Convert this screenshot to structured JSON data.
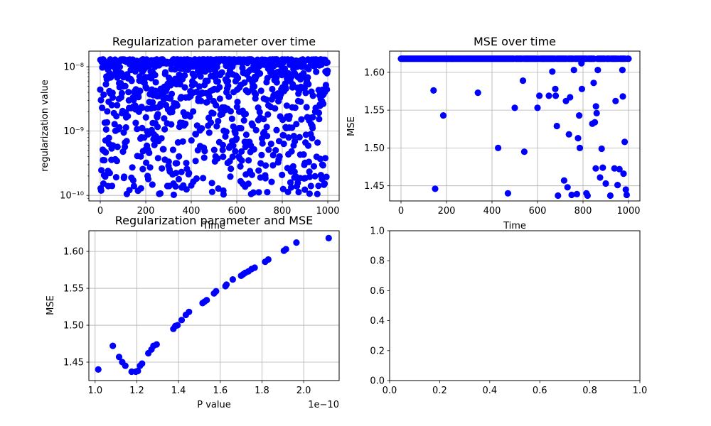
{
  "chart_data": [
    {
      "type": "scatter",
      "title": "Regularization parameter over time",
      "xlabel": "Time",
      "ylabel": "regularization value",
      "yscale": "log",
      "xlim": [
        -50,
        1050
      ],
      "ylim": [
        8.2e-11,
        1.75e-08
      ],
      "xticks": [
        0,
        200,
        400,
        600,
        800,
        1000
      ],
      "xtick_labels": [
        "0",
        "200",
        "400",
        "600",
        "800",
        "1000"
      ],
      "yticks": [
        1e-10,
        1e-09,
        1e-08
      ],
      "ytick_labels": [
        "10⁻¹⁰",
        "10⁻⁹",
        "10⁻⁸"
      ],
      "grid": true,
      "marker_color": "#0000ff",
      "n_points": 1000,
      "y_range_estimate": [
        1e-10,
        1.3e-08
      ],
      "points_note": "dense scatter, concentrated near 1e-8; points near the top at ~1.2e-8"
    },
    {
      "type": "scatter",
      "title": "MSE over time",
      "xlabel": "Time",
      "ylabel": "MSE",
      "xlim": [
        -50,
        1050
      ],
      "ylim": [
        1.43,
        1.628
      ],
      "xticks": [
        0,
        200,
        400,
        600,
        800,
        1000
      ],
      "xtick_labels": [
        "0",
        "200",
        "400",
        "600",
        "800",
        "1000"
      ],
      "yticks": [
        1.45,
        1.5,
        1.55,
        1.6
      ],
      "ytick_labels": [
        "1.45",
        "1.50",
        "1.55",
        "1.60"
      ],
      "grid": true,
      "marker_color": "#0000ff",
      "baseline": 1.618,
      "outliers": [
        [
          143,
          1.576
        ],
        [
          150,
          1.446
        ],
        [
          186,
          1.543
        ],
        [
          338,
          1.573
        ],
        [
          427,
          1.5
        ],
        [
          470,
          1.44
        ],
        [
          500,
          1.553
        ],
        [
          536,
          1.589
        ],
        [
          542,
          1.495
        ],
        [
          600,
          1.553
        ],
        [
          608,
          1.569
        ],
        [
          650,
          1.569
        ],
        [
          665,
          1.601
        ],
        [
          678,
          1.578
        ],
        [
          680,
          1.569
        ],
        [
          685,
          1.529
        ],
        [
          690,
          1.437
        ],
        [
          717,
          1.457
        ],
        [
          725,
          1.562
        ],
        [
          732,
          1.448
        ],
        [
          738,
          1.518
        ],
        [
          743,
          1.567
        ],
        [
          750,
          1.438
        ],
        [
          760,
          1.603
        ],
        [
          773,
          1.439
        ],
        [
          778,
          1.513
        ],
        [
          783,
          1.543
        ],
        [
          786,
          1.5
        ],
        [
          793,
          1.612
        ],
        [
          795,
          1.578
        ],
        [
          815,
          1.44
        ],
        [
          820,
          1.437
        ],
        [
          841,
          1.532
        ],
        [
          847,
          1.586
        ],
        [
          852,
          1.534
        ],
        [
          856,
          1.473
        ],
        [
          857,
          1.555
        ],
        [
          860,
          1.546
        ],
        [
          865,
          1.603
        ],
        [
          875,
          1.461
        ],
        [
          882,
          1.499
        ],
        [
          887,
          1.474
        ],
        [
          900,
          1.453
        ],
        [
          920,
          1.437
        ],
        [
          938,
          1.473
        ],
        [
          943,
          1.562
        ],
        [
          952,
          1.451
        ],
        [
          960,
          1.472
        ],
        [
          973,
          1.603
        ],
        [
          975,
          1.568
        ],
        [
          978,
          1.466
        ],
        [
          983,
          1.508
        ],
        [
          988,
          1.445
        ],
        [
          992,
          1.438
        ]
      ]
    },
    {
      "type": "scatter",
      "title": "Regularization parameter and MSE",
      "xlabel": "P value",
      "ylabel": "MSE",
      "x_offset_text": "1e−10",
      "xlim": [
        0.97,
        2.17
      ],
      "ylim": [
        1.425,
        1.628
      ],
      "xticks": [
        1.0,
        1.2,
        1.4,
        1.6,
        1.8,
        2.0
      ],
      "xtick_labels": [
        "1.0",
        "1.2",
        "1.4",
        "1.6",
        "1.8",
        "2.0"
      ],
      "yticks": [
        1.45,
        1.5,
        1.55,
        1.6
      ],
      "ytick_labels": [
        "1.45",
        "1.50",
        "1.55",
        "1.60"
      ],
      "grid": true,
      "marker_color": "#0000ff",
      "points": [
        [
          1.015,
          1.44
        ],
        [
          1.085,
          1.472
        ],
        [
          1.115,
          1.457
        ],
        [
          1.13,
          1.45
        ],
        [
          1.145,
          1.445
        ],
        [
          1.175,
          1.437
        ],
        [
          1.195,
          1.437
        ],
        [
          1.205,
          1.438
        ],
        [
          1.215,
          1.445
        ],
        [
          1.225,
          1.448
        ],
        [
          1.255,
          1.462
        ],
        [
          1.27,
          1.467
        ],
        [
          1.28,
          1.472
        ],
        [
          1.295,
          1.474
        ],
        [
          1.375,
          1.495
        ],
        [
          1.385,
          1.499
        ],
        [
          1.395,
          1.5
        ],
        [
          1.415,
          1.507
        ],
        [
          1.435,
          1.514
        ],
        [
          1.45,
          1.518
        ],
        [
          1.515,
          1.53
        ],
        [
          1.525,
          1.532
        ],
        [
          1.535,
          1.534
        ],
        [
          1.57,
          1.543
        ],
        [
          1.58,
          1.546
        ],
        [
          1.625,
          1.553
        ],
        [
          1.63,
          1.555
        ],
        [
          1.66,
          1.562
        ],
        [
          1.7,
          1.567
        ],
        [
          1.71,
          1.569
        ],
        [
          1.72,
          1.571
        ],
        [
          1.735,
          1.573
        ],
        [
          1.75,
          1.576
        ],
        [
          1.765,
          1.578
        ],
        [
          1.815,
          1.586
        ],
        [
          1.83,
          1.589
        ],
        [
          1.905,
          1.601
        ],
        [
          1.915,
          1.603
        ],
        [
          1.965,
          1.612
        ],
        [
          2.12,
          1.618
        ]
      ]
    },
    {
      "type": "scatter",
      "title": "",
      "xlabel": "",
      "ylabel": "",
      "xlim": [
        0,
        1
      ],
      "ylim": [
        0,
        1
      ],
      "xticks": [
        0,
        0.2,
        0.4,
        0.6,
        0.8,
        1.0
      ],
      "xtick_labels": [
        "0.0",
        "0.2",
        "0.4",
        "0.6",
        "0.8",
        "1.0"
      ],
      "yticks": [
        0,
        0.2,
        0.4,
        0.6,
        0.8,
        1.0
      ],
      "ytick_labels": [
        "0.0",
        "0.2",
        "0.4",
        "0.6",
        "0.8",
        "1.0"
      ],
      "grid": false,
      "points": []
    }
  ]
}
